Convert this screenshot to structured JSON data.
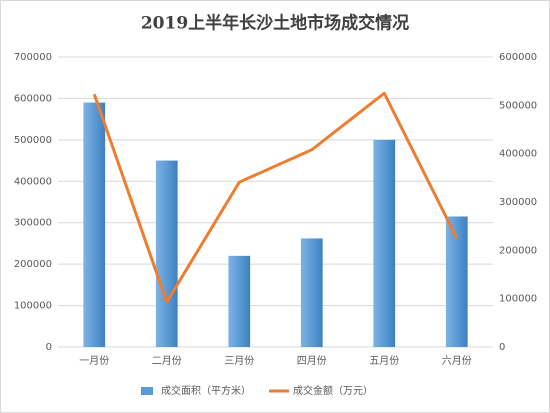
{
  "chart_data": {
    "type": "bar",
    "title": "2019上半年长沙土地市场成交情况",
    "categories": [
      "一月份",
      "二月份",
      "三月份",
      "四月份",
      "五月份",
      "六月份"
    ],
    "series": [
      {
        "name": "成交面积（平方米）",
        "color": "#5b9bd5",
        "values": [
          590000,
          450000,
          220000,
          262000,
          500000,
          315000
        ]
      },
      {
        "name": "成交金额（万元）",
        "color": "#ed7d31",
        "type": "line",
        "axis": "y2",
        "values": [
          523000,
          93000,
          341000,
          408000,
          525000,
          225000
        ]
      }
    ],
    "ylim": [
      0,
      700000
    ],
    "yticks": [
      0,
      100000,
      200000,
      300000,
      400000,
      500000,
      600000,
      700000
    ],
    "y2lim": [
      0,
      600000
    ],
    "y2ticks": [
      0,
      100000,
      200000,
      300000,
      400000,
      500000,
      600000
    ],
    "grid": true,
    "legend": "bottom"
  }
}
